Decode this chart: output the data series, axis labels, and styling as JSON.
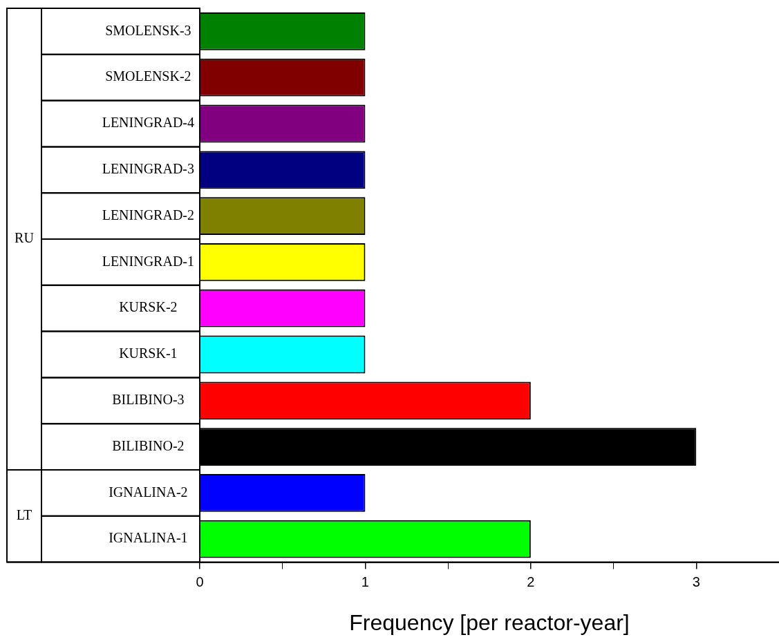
{
  "chart_data": {
    "type": "bar",
    "orientation": "horizontal",
    "xlabel": "Frequency [per reactor-year]",
    "categories": [
      "SMOLENSK-3",
      "SMOLENSK-2",
      "LENINGRAD-4",
      "LENINGRAD-3",
      "LENINGRAD-2",
      "LENINGRAD-1",
      "KURSK-2",
      "KURSK-1",
      "BILIBINO-3",
      "BILIBINO-2",
      "IGNALINA-2",
      "IGNALINA-1"
    ],
    "values": [
      1,
      1,
      1,
      1,
      1,
      1,
      1,
      1,
      2,
      3,
      1,
      2
    ],
    "colors": [
      "#008000",
      "#800000",
      "#800080",
      "#000080",
      "#808000",
      "#ffff00",
      "#ff00ff",
      "#00ffff",
      "#ff0000",
      "#000000",
      "#0000ff",
      "#00ff00"
    ],
    "xlim": [
      0,
      3.5
    ],
    "xticks": [
      0,
      {
        "value": 0.5,
        "label": null
      },
      1,
      {
        "value": 1.5,
        "label": null
      },
      2,
      {
        "value": 2.5,
        "label": null
      },
      3
    ],
    "annotations": [
      "RU",
      "LT"
    ],
    "grid": false,
    "legend": false
  }
}
